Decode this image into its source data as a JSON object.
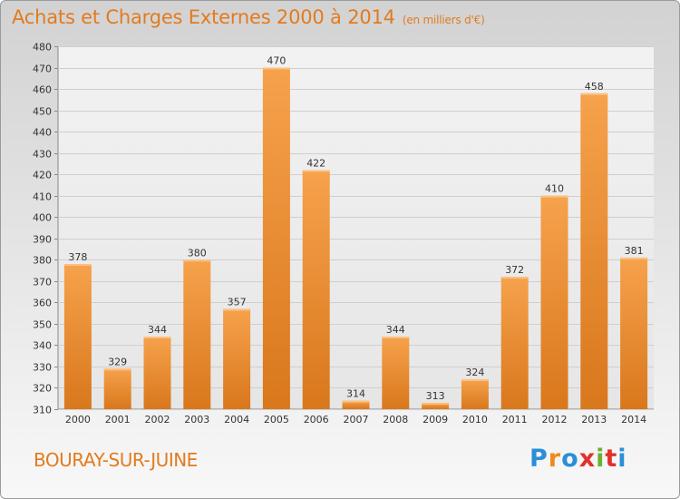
{
  "chart_data": {
    "type": "bar",
    "title": "Achats et Charges Externes 2000 à 2014",
    "subtitle": "(en milliers d'€)",
    "categories": [
      "2000",
      "2001",
      "2002",
      "2003",
      "2004",
      "2005",
      "2006",
      "2007",
      "2008",
      "2009",
      "2010",
      "2011",
      "2012",
      "2013",
      "2014"
    ],
    "values": [
      378,
      329,
      344,
      380,
      357,
      470,
      422,
      314,
      344,
      313,
      324,
      372,
      410,
      458,
      381
    ],
    "ylim": [
      310,
      480
    ],
    "yticks": [
      310,
      320,
      330,
      340,
      350,
      360,
      370,
      380,
      390,
      400,
      410,
      420,
      430,
      440,
      450,
      460,
      470,
      480
    ],
    "grid": true,
    "bar_color": "#f0922f"
  },
  "footer": {
    "commune": "BOURAY-SUR-JUINE",
    "logo": "Proxiti",
    "logo_colors": [
      "#2a8fd8",
      "#f08a1e",
      "#2a8fd8",
      "#e0312a",
      "#6ab232",
      "#e0312a",
      "#2a8fd8"
    ]
  }
}
